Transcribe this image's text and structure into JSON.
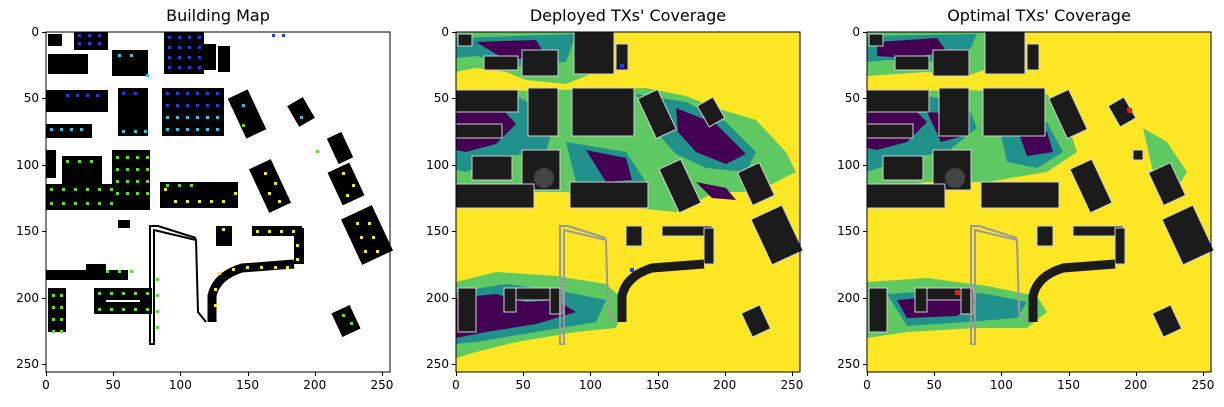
{
  "figure": {
    "panels": [
      {
        "id": "building",
        "title": "Building Map"
      },
      {
        "id": "deployed",
        "title": "Deployed TXs' Coverage"
      },
      {
        "id": "optimal",
        "title": "Optimal TXs' Coverage"
      }
    ]
  },
  "chart_data": [
    {
      "type": "heatmap",
      "title": "Building Map",
      "xlabel": "",
      "ylabel": "",
      "xlim": [
        0,
        256
      ],
      "ylim": [
        256,
        0
      ],
      "xticks": [
        0,
        50,
        100,
        150,
        200,
        250
      ],
      "yticks": [
        0,
        50,
        100,
        150,
        200,
        250
      ],
      "grid": false,
      "colors": {
        "background": "#ffffff",
        "building": "#000000",
        "marker_blue": "#1a3cff",
        "marker_cyan": "#22c8f0",
        "marker_green": "#44ee11",
        "marker_yellow": "#f0f000"
      }
    },
    {
      "type": "heatmap",
      "title": "Deployed TXs' Coverage",
      "xlabel": "",
      "ylabel": "",
      "xlim": [
        0,
        256
      ],
      "ylim": [
        256,
        0
      ],
      "xticks": [
        0,
        50,
        100,
        150,
        200,
        250
      ],
      "yticks": [
        0,
        50,
        100,
        150,
        200,
        250
      ],
      "grid": false,
      "colors": {
        "covered": "#fde725",
        "partial": "#5ec962",
        "weak": "#21918c",
        "none": "#440154",
        "building": "#1b1b1b",
        "tx": "#1f3cff"
      }
    },
    {
      "type": "heatmap",
      "title": "Optimal TXs' Coverage",
      "xlabel": "",
      "ylabel": "",
      "xlim": [
        0,
        256
      ],
      "ylim": [
        256,
        0
      ],
      "xticks": [
        0,
        50,
        100,
        150,
        200,
        250
      ],
      "yticks": [
        0,
        50,
        100,
        150,
        200,
        250
      ],
      "grid": false,
      "colors": {
        "covered": "#fde725",
        "partial": "#5ec962",
        "weak": "#21918c",
        "none": "#440154",
        "building": "#1b1b1b",
        "tx": "#ff1010"
      }
    }
  ]
}
